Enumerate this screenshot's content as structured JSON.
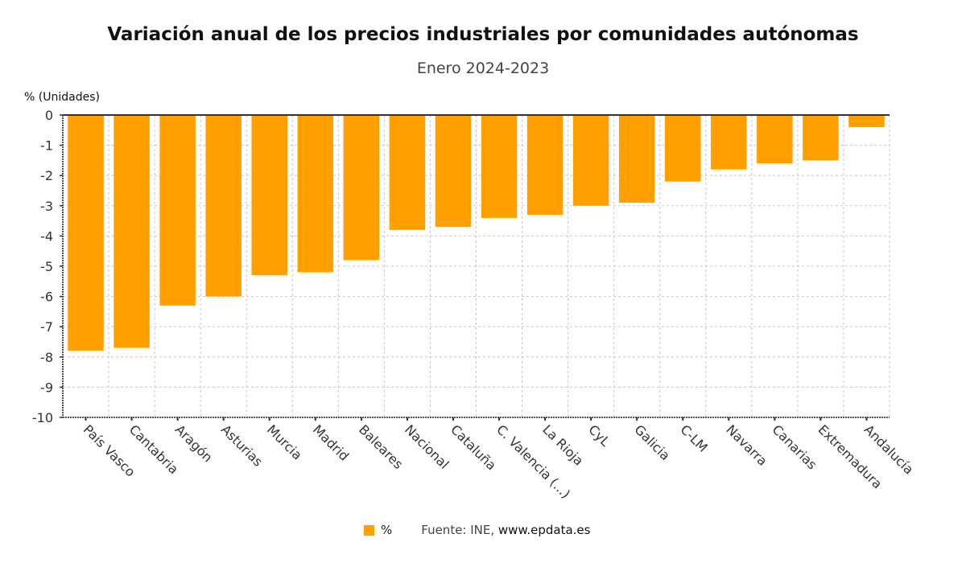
{
  "chart_data": {
    "type": "bar",
    "title": "Variación anual de los precios industriales por comunidades autónomas",
    "subtitle": "Enero 2024-2023",
    "ylabel": "% (Unidades)",
    "xlabel": "",
    "ylim": [
      -10,
      0
    ],
    "yticks": [
      0,
      -1,
      -2,
      -3,
      -4,
      -5,
      -6,
      -7,
      -8,
      -9,
      -10
    ],
    "grid": true,
    "bar_color": "#ff9f00",
    "categories": [
      "País Vasco",
      "Cantabria",
      "Aragón",
      "Asturias",
      "Murcia",
      "Madrid",
      "Baleares",
      "Nacional",
      "Cataluña",
      "C. Valencia (...)",
      "La Rioja",
      "CyL",
      "Galicia",
      "C-LM",
      "Navarra",
      "Canarias",
      "Extremadura",
      "Andalucía"
    ],
    "series": [
      {
        "name": "%",
        "values": [
          -7.8,
          -7.7,
          -6.3,
          -6.0,
          -5.3,
          -5.2,
          -4.8,
          -3.8,
          -3.7,
          -3.4,
          -3.3,
          -3.0,
          -2.9,
          -2.2,
          -1.8,
          -1.6,
          -1.5,
          -0.4
        ]
      }
    ],
    "legend": {
      "position": "bottom",
      "entries": [
        "%"
      ]
    }
  },
  "source": {
    "prefix": "Fuente: INE, ",
    "site": "www.epdata.es"
  }
}
